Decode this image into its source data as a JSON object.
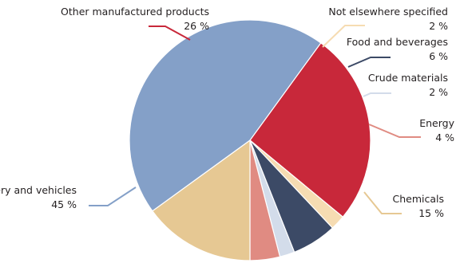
{
  "chart_data": {
    "type": "pie",
    "title": "",
    "unit": "%",
    "slices": [
      {
        "label": "Other manufactured products",
        "value": 26,
        "value_text": "26 %",
        "color": "#c8283a"
      },
      {
        "label": "Not elsewhere specified",
        "value": 2,
        "value_text": "2 %",
        "color": "#f6dcb2"
      },
      {
        "label": "Food and beverages",
        "value": 6,
        "value_text": "6 %",
        "color": "#3c4a66"
      },
      {
        "label": "Crude materials",
        "value": 2,
        "value_text": "2 %",
        "color": "#d3dcea"
      },
      {
        "label": "Energy",
        "value": 4,
        "value_text": "4 %",
        "color": "#e08b82"
      },
      {
        "label": "Chemicals",
        "value": 15,
        "value_text": "15 %",
        "color": "#e6c893"
      },
      {
        "label": "Machinery and vehicles",
        "value": 45,
        "value_text": "45 %",
        "color": "#84a0c8"
      }
    ],
    "start_angle_deg": -54,
    "legend": "none"
  }
}
